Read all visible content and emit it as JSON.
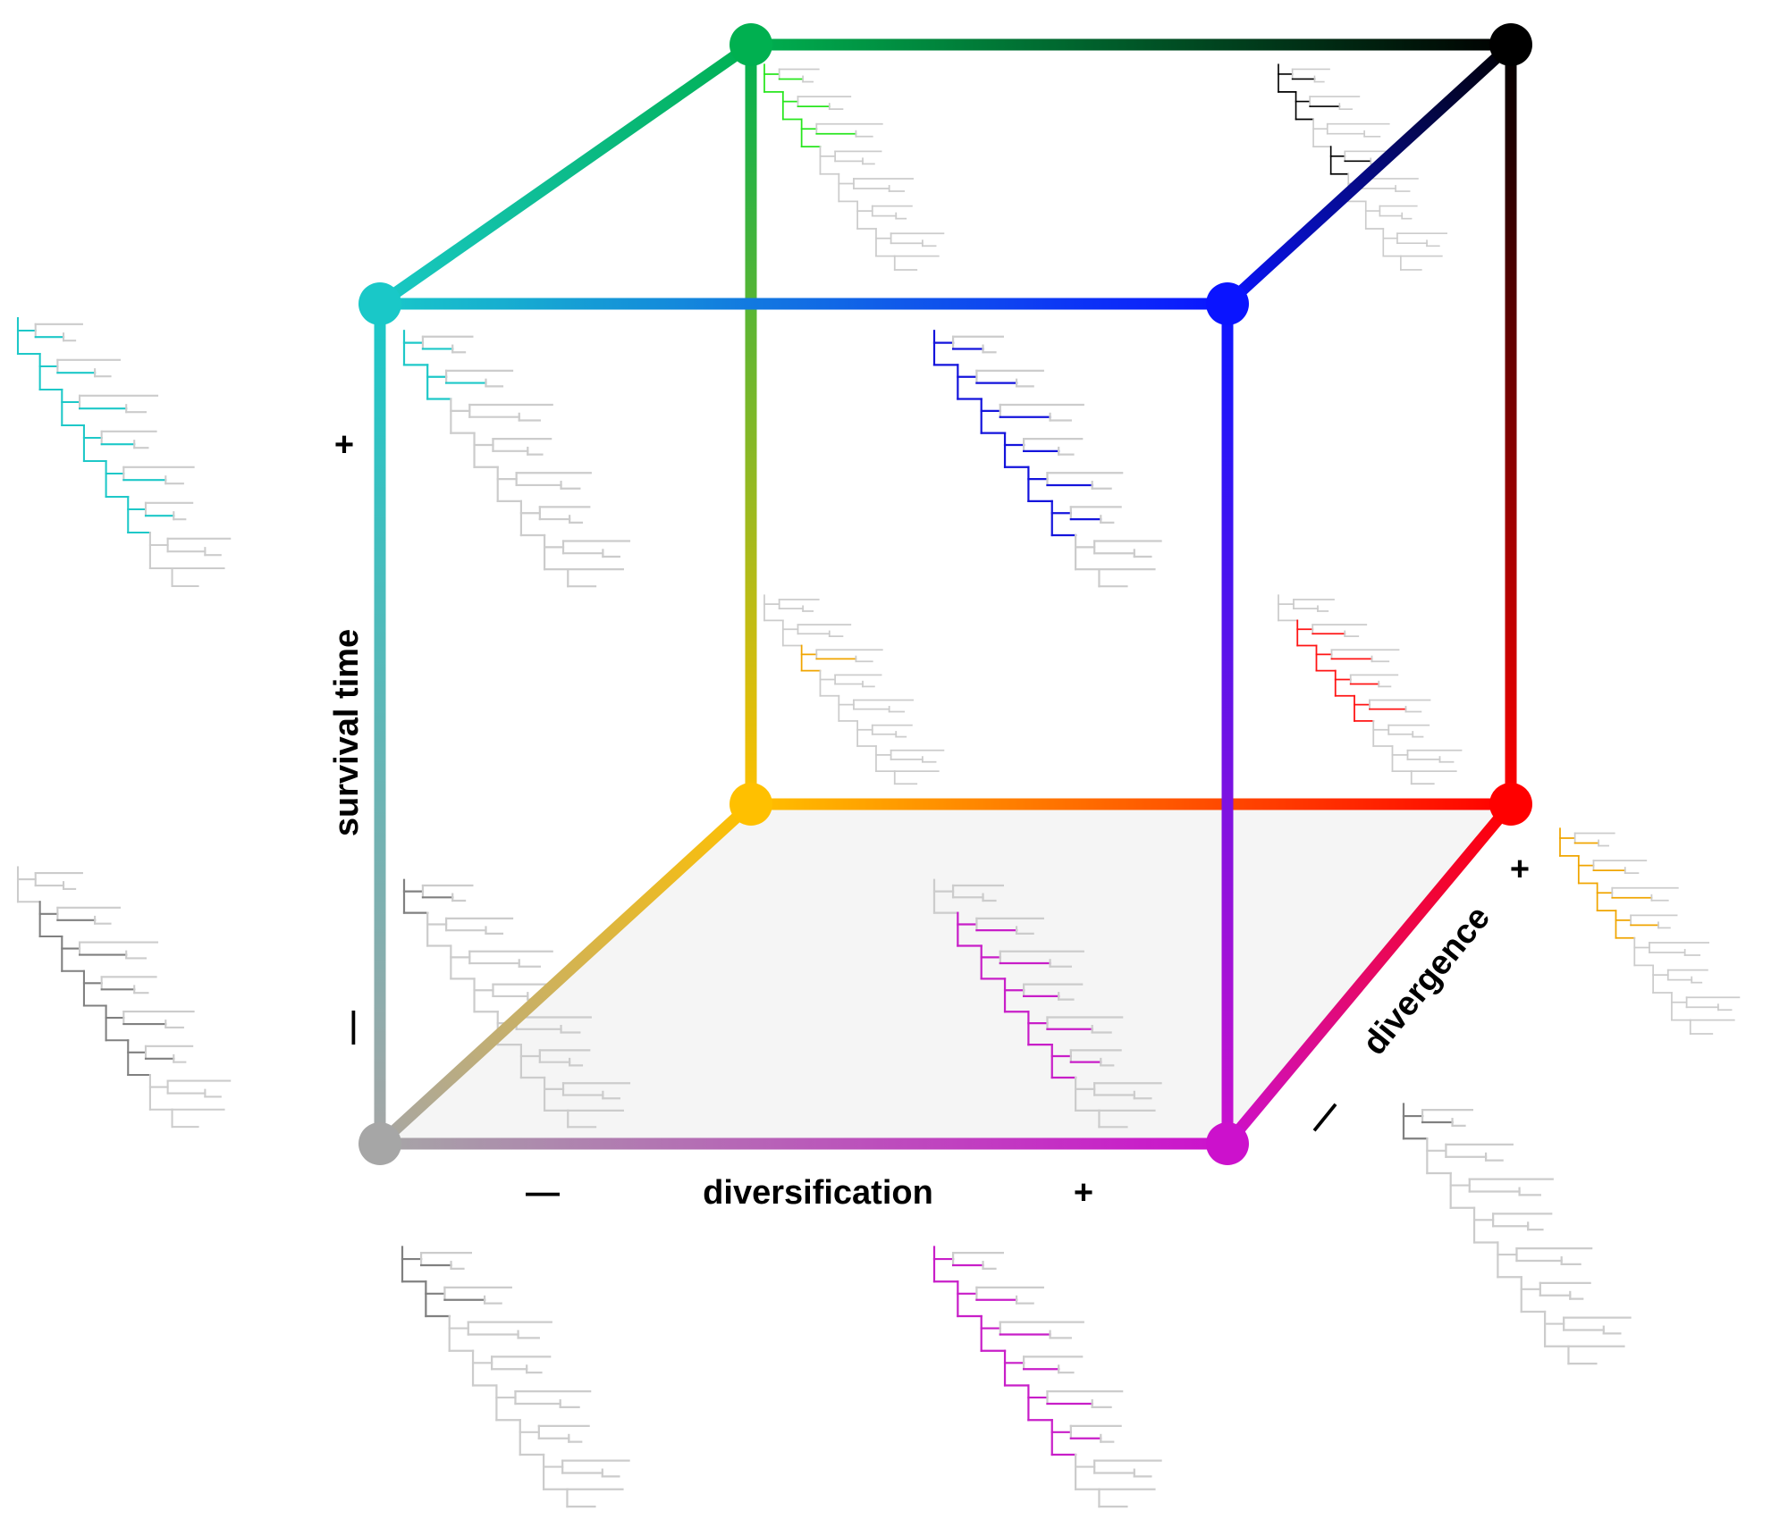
{
  "axes": {
    "survival": {
      "label": "survival time",
      "minus": "—",
      "plus": "+"
    },
    "diversification": {
      "label": "diversification",
      "minus": "—",
      "plus": "+"
    },
    "divergence": {
      "label": "divergence",
      "minus": "—",
      "plus": "+"
    }
  },
  "vertices": [
    {
      "id": "front-bottom-left",
      "color": "#a6a6a6"
    },
    {
      "id": "front-bottom-right",
      "color": "#cc11cc"
    },
    {
      "id": "front-top-left",
      "color": "#19c8c8"
    },
    {
      "id": "front-top-right",
      "color": "#0a14ff"
    },
    {
      "id": "back-bottom-left",
      "color": "#ffc000"
    },
    {
      "id": "back-bottom-right",
      "color": "#ff0000"
    },
    {
      "id": "back-top-left",
      "color": "#00b050"
    },
    {
      "id": "back-top-right",
      "color": "#000000"
    }
  ],
  "trees": [
    {
      "id": "left-upper",
      "color": "#1ec8c8"
    },
    {
      "id": "left-lower",
      "color": "#808080"
    },
    {
      "id": "bottom-left",
      "color": "#808080"
    },
    {
      "id": "bottom-right",
      "color": "#c81ec8"
    },
    {
      "id": "right-upper",
      "color": "#f0a500"
    },
    {
      "id": "right-lower",
      "color": "#808080"
    },
    {
      "id": "inner-front-top-left",
      "color": "#1ec8c8"
    },
    {
      "id": "inner-front-top-right",
      "color": "#1414dc"
    },
    {
      "id": "inner-front-bottom-left",
      "color": "#808080"
    },
    {
      "id": "inner-front-bottom-right",
      "color": "#c81ec8"
    },
    {
      "id": "inner-back-top-left",
      "color": "#28e61e"
    },
    {
      "id": "inner-back-top-right",
      "color": "#000000"
    },
    {
      "id": "inner-back-bottom-left",
      "color": "#f0a500"
    },
    {
      "id": "inner-back-bottom-right",
      "color": "#ff1414"
    }
  ]
}
